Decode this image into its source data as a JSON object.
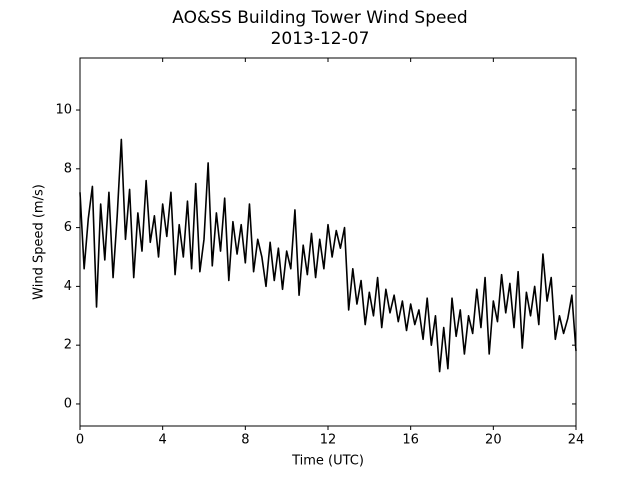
{
  "chart_data": {
    "type": "line",
    "title": "AO&SS Building Tower Wind Speed",
    "subtitle": "2013-12-07",
    "x_label": "Time (UTC)",
    "y_label": "Wind Speed (m/s)",
    "color": "#000000",
    "xlim": [
      0,
      24
    ],
    "xticks": [
      0,
      4,
      8,
      12,
      16,
      20,
      24
    ],
    "ylim": [
      -0.75,
      11.77
    ],
    "yticks": [
      0,
      2,
      4,
      6,
      8,
      10
    ],
    "x": [
      0,
      0.2,
      0.4,
      0.6,
      0.8,
      1.0,
      1.2,
      1.4,
      1.6,
      1.8,
      2.0,
      2.2,
      2.4,
      2.6,
      2.8,
      3.0,
      3.2,
      3.4,
      3.6,
      3.8,
      4.0,
      4.2,
      4.4,
      4.6,
      4.8,
      5.0,
      5.2,
      5.4,
      5.6,
      5.8,
      6.0,
      6.2,
      6.4,
      6.6,
      6.8,
      7.0,
      7.2,
      7.4,
      7.6,
      7.8,
      8.0,
      8.2,
      8.4,
      8.6,
      8.8,
      9.0,
      9.2,
      9.4,
      9.6,
      9.8,
      10.0,
      10.2,
      10.4,
      10.6,
      10.8,
      11.0,
      11.2,
      11.4,
      11.6,
      11.8,
      12.0,
      12.2,
      12.4,
      12.6,
      12.8,
      13.0,
      13.2,
      13.4,
      13.6,
      13.8,
      14.0,
      14.2,
      14.4,
      14.6,
      14.8,
      15.0,
      15.2,
      15.4,
      15.6,
      15.8,
      16.0,
      16.2,
      16.4,
      16.6,
      16.8,
      17.0,
      17.2,
      17.4,
      17.6,
      17.8,
      18.0,
      18.2,
      18.4,
      18.6,
      18.8,
      19.0,
      19.2,
      19.4,
      19.6,
      19.8,
      20.0,
      20.2,
      20.4,
      20.6,
      20.8,
      21.0,
      21.2,
      21.4,
      21.6,
      21.8,
      22.0,
      22.2,
      22.4,
      22.6,
      22.8,
      23.0,
      23.2,
      23.4,
      23.6,
      23.8,
      24.0
    ],
    "values": [
      7.2,
      4.6,
      6.3,
      7.4,
      3.3,
      6.8,
      4.9,
      7.2,
      4.3,
      6.4,
      9.0,
      5.6,
      7.3,
      4.3,
      6.5,
      5.2,
      7.6,
      5.5,
      6.4,
      5.0,
      6.8,
      5.7,
      7.2,
      4.4,
      6.1,
      5.0,
      6.9,
      4.6,
      7.5,
      4.5,
      5.6,
      8.2,
      4.7,
      6.5,
      5.2,
      7.0,
      4.2,
      6.2,
      5.1,
      6.1,
      4.8,
      6.8,
      4.5,
      5.6,
      5.0,
      4.0,
      5.5,
      4.2,
      5.3,
      3.9,
      5.2,
      4.6,
      6.6,
      3.7,
      5.4,
      4.4,
      5.8,
      4.3,
      5.6,
      4.6,
      6.1,
      5.0,
      5.9,
      5.3,
      6.0,
      3.2,
      4.6,
      3.4,
      4.2,
      2.7,
      3.8,
      3.0,
      4.3,
      2.6,
      3.9,
      3.1,
      3.7,
      2.8,
      3.5,
      2.5,
      3.4,
      2.7,
      3.2,
      2.2,
      3.6,
      2.0,
      3.0,
      1.1,
      2.6,
      1.2,
      3.6,
      2.3,
      3.2,
      1.7,
      3.0,
      2.4,
      3.9,
      2.6,
      4.3,
      1.7,
      3.5,
      2.8,
      4.4,
      3.1,
      4.1,
      2.6,
      4.5,
      1.9,
      3.8,
      3.0,
      4.0,
      2.7,
      5.1,
      3.5,
      4.3,
      2.2,
      3.0,
      2.4,
      2.9,
      3.7,
      1.8
    ]
  }
}
